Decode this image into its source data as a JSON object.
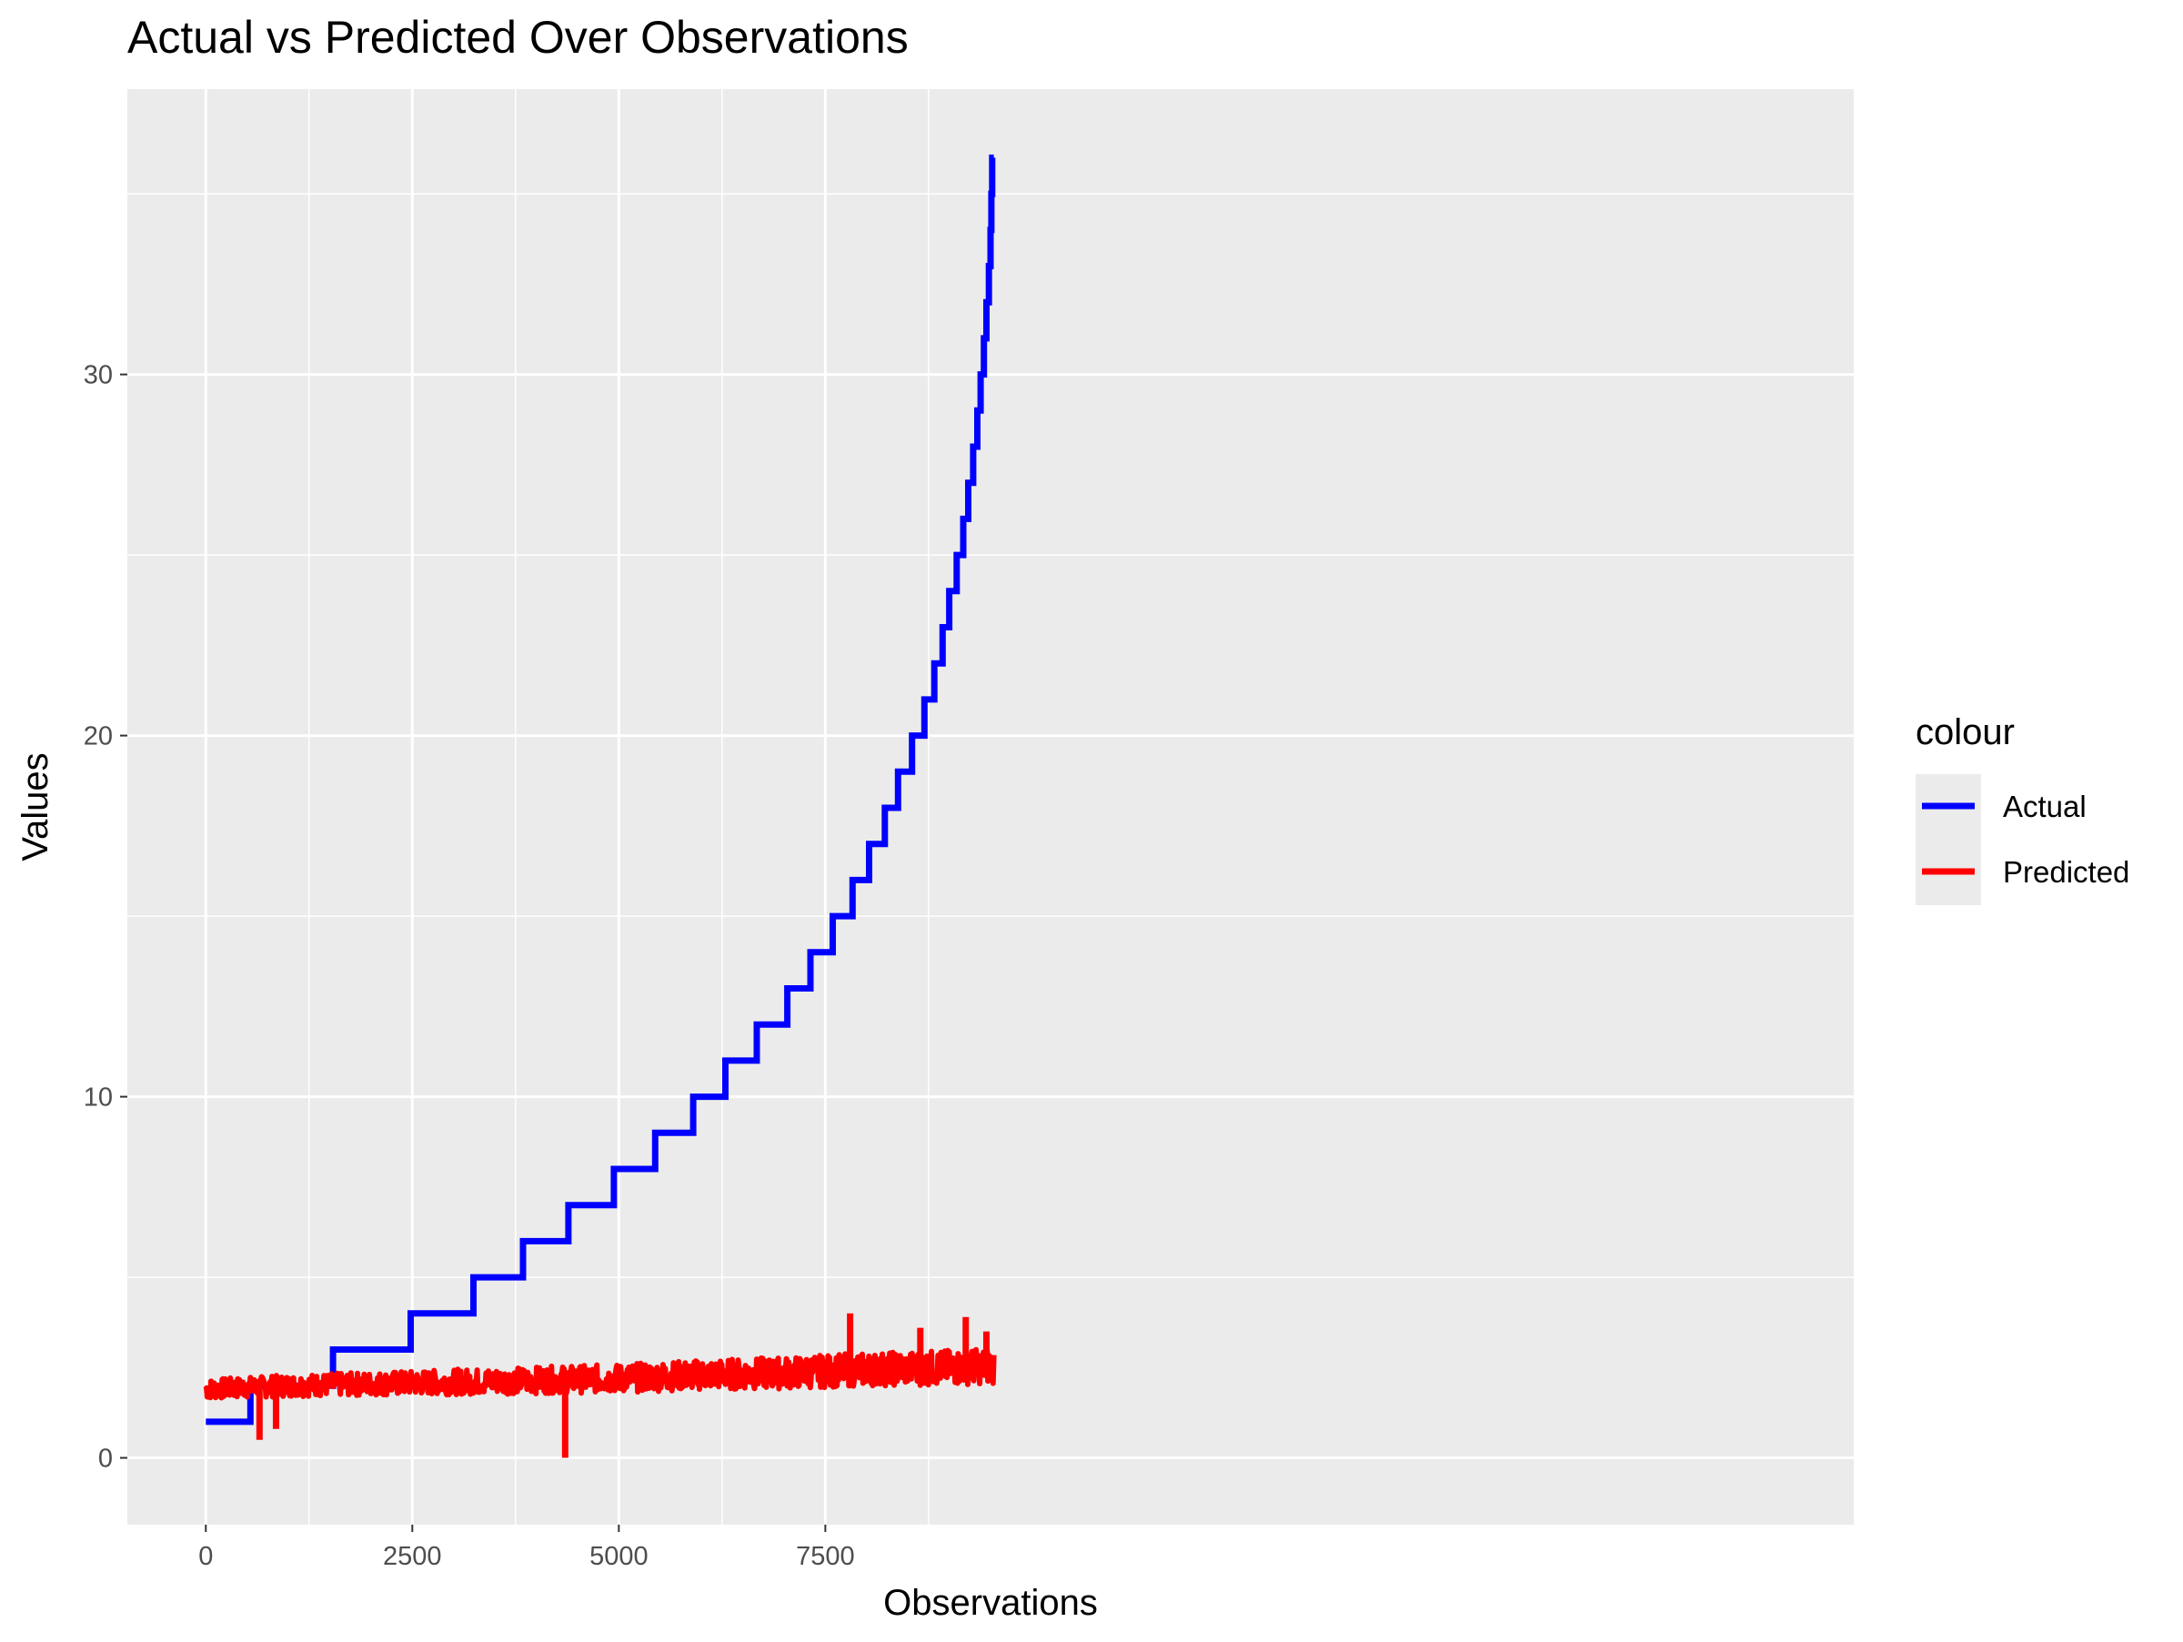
{
  "chart_data": {
    "type": "line",
    "title": "Actual vs Predicted Over Observations",
    "xlabel": "Observations",
    "ylabel": "Values",
    "xlim": [
      -950,
      19950
    ],
    "ylim": [
      -1.85,
      37.9
    ],
    "x_ticks": [
      0,
      2500,
      5000,
      7500
    ],
    "x_tick_labels": [
      "0",
      "2500",
      "5000",
      "7500"
    ],
    "x_minor_ticks": [
      1250,
      3750,
      6250,
      8750
    ],
    "y_ticks": [
      0,
      10,
      20,
      30
    ],
    "y_tick_labels": [
      "0",
      "10",
      "20",
      "30"
    ],
    "y_minor_ticks": [
      5,
      15,
      25,
      35
    ],
    "grid": true,
    "legend": {
      "title": "colour",
      "position": "right"
    },
    "series": [
      {
        "name": "Actual",
        "color": "#0000ff",
        "style": "step",
        "x": [
          0,
          540,
          1540,
          2480,
          3240,
          3840,
          4390,
          4940,
          5440,
          5900,
          6290,
          6670,
          7040,
          7320,
          7590,
          7830,
          8030,
          8220,
          8380,
          8550,
          8700,
          8820,
          8920,
          9000,
          9090,
          9170,
          9230,
          9290,
          9340,
          9380,
          9420,
          9450,
          9480,
          9500,
          9510,
          9520,
          9540
        ],
        "values": [
          1,
          2,
          3,
          4,
          5,
          6,
          7,
          8,
          9,
          10,
          11,
          12,
          13,
          14,
          15,
          16,
          17,
          18,
          19,
          20,
          21,
          22,
          23,
          24,
          25,
          26,
          27,
          28,
          29,
          30,
          31,
          32,
          33,
          34,
          35,
          36,
          36
        ]
      },
      {
        "name": "Predicted",
        "color": "#ff0000",
        "style": "noisy",
        "x": [
          0,
          1000,
          2000,
          3000,
          4000,
          5000,
          6000,
          7000,
          8000,
          9000,
          9540
        ],
        "values": [
          1.9,
          2.0,
          2.05,
          2.1,
          2.15,
          2.2,
          2.3,
          2.35,
          2.45,
          2.5,
          2.55
        ],
        "spikes": [
          {
            "x": 650,
            "y": 0.5
          },
          {
            "x": 850,
            "y": 0.8
          },
          {
            "x": 4350,
            "y": 0.0
          },
          {
            "x": 7800,
            "y": 4.0
          },
          {
            "x": 8650,
            "y": 3.6
          },
          {
            "x": 9200,
            "y": 3.9
          },
          {
            "x": 9450,
            "y": 3.5
          }
        ]
      }
    ]
  }
}
